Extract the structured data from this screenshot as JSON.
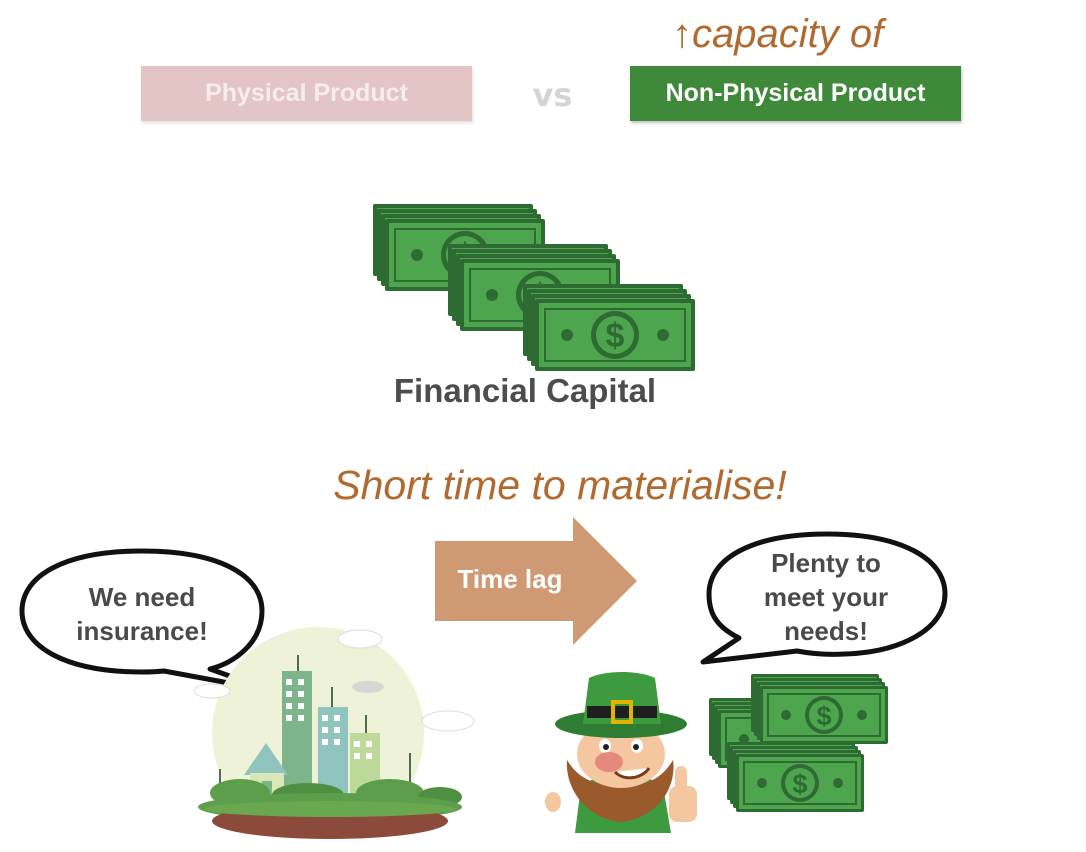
{
  "header": {
    "physical_label": "Physical Product",
    "vs_label": "vs",
    "non_physical_label": "Non-Physical Product",
    "capacity_arrow": "↑",
    "capacity_label": "capacity of"
  },
  "capital": {
    "label": "Financial Capital",
    "currency_symbol": "$"
  },
  "timing": {
    "headline": "Short time to materialise!",
    "arrow_label": "Time lag"
  },
  "left_bubble": {
    "line1": "We need",
    "line2": "insurance!"
  },
  "right_bubble": {
    "line1": "Plenty to",
    "line2": "meet your",
    "line3": "needs!"
  },
  "colors": {
    "physical_box": "#e3c5c5",
    "non_physical_box": "#3f8a3a",
    "accent_text": "#b06a30",
    "arrow_fill": "#cf9a73",
    "money_green": "#4da54d",
    "money_dark": "#2e6b32"
  },
  "icons": [
    "money-stack-icon",
    "green-city-icon",
    "leprechaun-icon",
    "speech-bubble-icon",
    "right-arrow-icon"
  ]
}
